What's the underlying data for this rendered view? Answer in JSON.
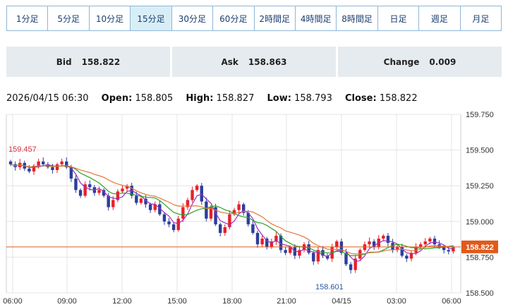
{
  "timeframes": [
    {
      "label": "1分足",
      "active": false
    },
    {
      "label": "5分足",
      "active": false
    },
    {
      "label": "10分足",
      "active": false
    },
    {
      "label": "15分足",
      "active": true
    },
    {
      "label": "30分足",
      "active": false
    },
    {
      "label": "60分足",
      "active": false
    },
    {
      "label": "2時間足",
      "active": false
    },
    {
      "label": "4時間足",
      "active": false
    },
    {
      "label": "8時間足",
      "active": false
    },
    {
      "label": "日足",
      "active": false
    },
    {
      "label": "週足",
      "active": false
    },
    {
      "label": "月足",
      "active": false
    }
  ],
  "quote": {
    "bid_label": "Bid",
    "bid_value": "158.822",
    "ask_label": "Ask",
    "ask_value": "158.863",
    "change_label": "Change",
    "change_value": "0.009"
  },
  "ohlc": {
    "datetime": "2026/04/15 06:30",
    "open_label": "Open:",
    "open": "158.805",
    "high_label": "High:",
    "high": "158.827",
    "low_label": "Low:",
    "low": "158.793",
    "close_label": "Close:",
    "close": "158.822"
  },
  "colors": {
    "up": "#e8202a",
    "down": "#2a3f9c",
    "ma_short": "#9b2fbd",
    "ma_mid": "#28a428",
    "ma_long": "#e0783a",
    "price_line": "#e05a1a",
    "grid": "#e4e4e4"
  },
  "chart_data": {
    "type": "candlestick",
    "y_ticks": [
      "159.750",
      "159.500",
      "159.250",
      "159.000",
      "158.750",
      "158.500"
    ],
    "ylim": [
      158.5,
      159.75
    ],
    "x_ticks": [
      "06:00",
      "09:00",
      "12:00",
      "15:00",
      "18:00",
      "21:00",
      "04/15",
      "03:00",
      "06:00"
    ],
    "annotations": {
      "high_label": "159.457",
      "low_label": "158.601"
    },
    "current_price": "158.822",
    "series_close": [
      159.4,
      159.38,
      159.41,
      159.37,
      159.35,
      159.39,
      159.42,
      159.4,
      159.38,
      159.36,
      159.4,
      159.42,
      159.38,
      159.3,
      159.22,
      159.18,
      159.26,
      159.24,
      159.2,
      159.22,
      159.18,
      159.1,
      159.15,
      159.21,
      159.23,
      159.25,
      159.18,
      159.13,
      159.16,
      159.12,
      159.08,
      159.12,
      159.05,
      159.0,
      158.98,
      158.94,
      159.02,
      159.1,
      159.15,
      159.22,
      159.25,
      159.14,
      159.02,
      159.1,
      158.98,
      158.92,
      158.96,
      159.05,
      159.08,
      159.12,
      159.06,
      158.98,
      158.92,
      158.84,
      158.88,
      158.82,
      158.86,
      158.9,
      158.8,
      158.78,
      158.82,
      158.76,
      158.8,
      158.84,
      158.78,
      158.72,
      158.8,
      158.76,
      158.74,
      158.82,
      158.86,
      158.78,
      158.7,
      158.66,
      158.74,
      158.8,
      158.84,
      158.86,
      158.82,
      158.88,
      158.9,
      158.85,
      158.8,
      158.82,
      158.76,
      158.74,
      158.78,
      158.82,
      158.84,
      158.86,
      158.88,
      158.84,
      158.82,
      158.8,
      158.79,
      158.82
    ]
  }
}
